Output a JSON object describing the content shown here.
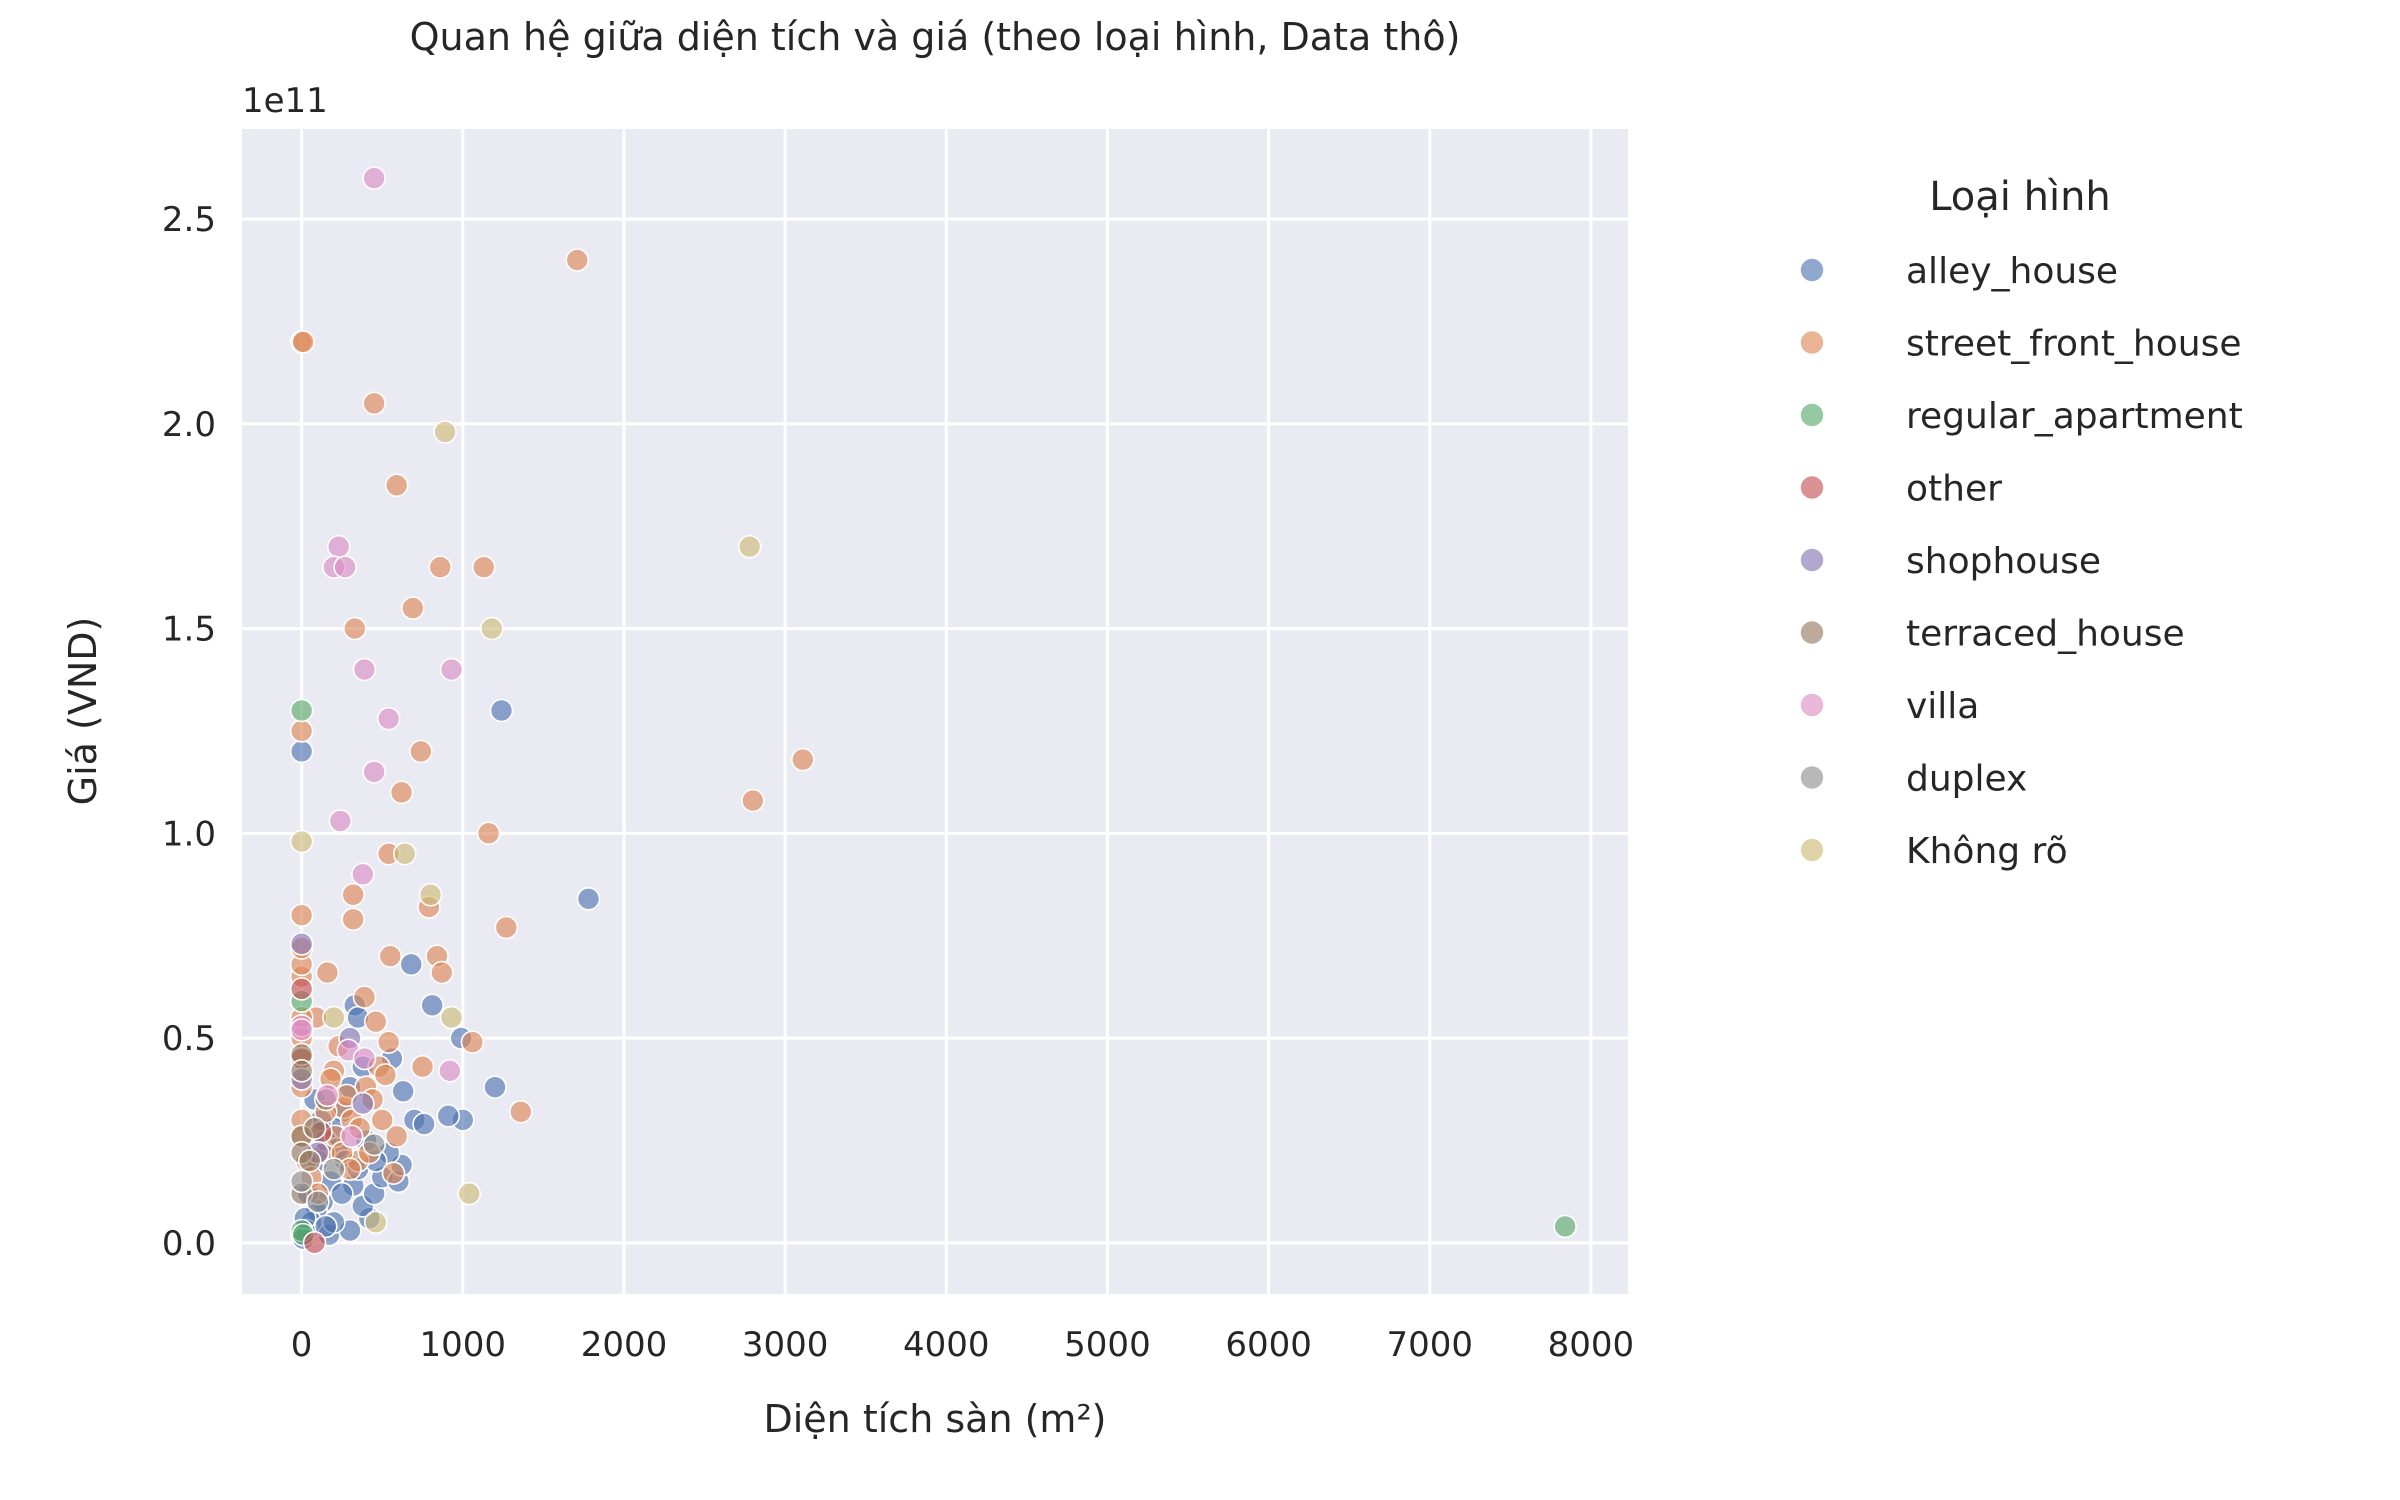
{
  "chart_data": {
    "type": "scatter",
    "title": "Quan hệ giữa diện tích và giá (theo loại hình, Data thô)",
    "xlabel": "Diện tích sàn (m²)",
    "ylabel": "Giá (VND)",
    "y_offset_label": "1e11",
    "y_unit_multiplier": 100000000000,
    "xlim": [
      -370,
      8230
    ],
    "ylim": [
      -0.125,
      2.72
    ],
    "x_ticks": [
      0,
      1000,
      2000,
      3000,
      4000,
      5000,
      6000,
      7000,
      8000
    ],
    "x_tick_labels": [
      "0",
      "1000",
      "2000",
      "3000",
      "4000",
      "5000",
      "6000",
      "7000",
      "8000"
    ],
    "y_ticks": [
      0.0,
      0.5,
      1.0,
      1.5,
      2.0,
      2.5
    ],
    "y_tick_labels": [
      "0.0",
      "0.5",
      "1.0",
      "1.5",
      "2.0",
      "2.5"
    ],
    "grid": true,
    "background": "#eaeaf2",
    "legend": {
      "title": "Loại hình",
      "placement": "outside-right"
    },
    "series": [
      {
        "name": "alley_house",
        "color": "#4c72b0",
        "points": [
          [
            0,
            1.2
          ],
          [
            1240,
            1.3
          ],
          [
            1780,
            0.84
          ],
          [
            680,
            0.68
          ],
          [
            810,
            0.58
          ],
          [
            990,
            0.5
          ],
          [
            1200,
            0.38
          ],
          [
            1000,
            0.3
          ],
          [
            910,
            0.31
          ],
          [
            630,
            0.37
          ],
          [
            560,
            0.45
          ],
          [
            330,
            0.58
          ],
          [
            350,
            0.55
          ],
          [
            380,
            0.43
          ],
          [
            300,
            0.38
          ],
          [
            250,
            0.32
          ],
          [
            200,
            0.28
          ],
          [
            150,
            0.25
          ],
          [
            100,
            0.2
          ],
          [
            180,
            0.15
          ],
          [
            130,
            0.1
          ],
          [
            90,
            0.08
          ],
          [
            60,
            0.05
          ],
          [
            30,
            0.03
          ],
          [
            0,
            0.02
          ],
          [
            10,
            0.01
          ],
          [
            170,
            0.02
          ],
          [
            300,
            0.03
          ],
          [
            420,
            0.06
          ],
          [
            380,
            0.09
          ],
          [
            450,
            0.12
          ],
          [
            500,
            0.16
          ],
          [
            600,
            0.15
          ],
          [
            620,
            0.19
          ],
          [
            540,
            0.22
          ],
          [
            220,
            0.23
          ],
          [
            400,
            0.25
          ],
          [
            270,
            0.2
          ],
          [
            320,
            0.14
          ],
          [
            200,
            0.05
          ],
          [
            150,
            0.04
          ],
          [
            250,
            0.12
          ],
          [
            350,
            0.18
          ],
          [
            460,
            0.2
          ],
          [
            700,
            0.3
          ],
          [
            760,
            0.29
          ],
          [
            120,
            0.3
          ],
          [
            80,
            0.35
          ],
          [
            40,
            0.12
          ],
          [
            20,
            0.06
          ]
        ]
      },
      {
        "name": "street_front_house",
        "color": "#dd8452",
        "points": [
          [
            0,
            2.2
          ],
          [
            10,
            2.2
          ],
          [
            1710,
            2.4
          ],
          [
            450,
            2.05
          ],
          [
            590,
            1.85
          ],
          [
            330,
            1.5
          ],
          [
            690,
            1.55
          ],
          [
            860,
            1.65
          ],
          [
            1130,
            1.65
          ],
          [
            0,
            1.25
          ],
          [
            740,
            1.2
          ],
          [
            3110,
            1.18
          ],
          [
            2800,
            1.08
          ],
          [
            620,
            1.1
          ],
          [
            1160,
            1.0
          ],
          [
            540,
            0.95
          ],
          [
            320,
            0.85
          ],
          [
            790,
            0.82
          ],
          [
            0,
            0.8
          ],
          [
            320,
            0.79
          ],
          [
            1270,
            0.77
          ],
          [
            550,
            0.7
          ],
          [
            840,
            0.7
          ],
          [
            870,
            0.66
          ],
          [
            0,
            0.65
          ],
          [
            160,
            0.66
          ],
          [
            0,
            0.68
          ],
          [
            390,
            0.6
          ],
          [
            460,
            0.54
          ],
          [
            90,
            0.55
          ],
          [
            540,
            0.49
          ],
          [
            1060,
            0.49
          ],
          [
            750,
            0.43
          ],
          [
            480,
            0.43
          ],
          [
            400,
            0.38
          ],
          [
            1360,
            0.32
          ],
          [
            590,
            0.26
          ],
          [
            200,
            0.42
          ],
          [
            260,
            0.33
          ],
          [
            310,
            0.3
          ],
          [
            140,
            0.22
          ],
          [
            210,
            0.26
          ],
          [
            350,
            0.2
          ],
          [
            570,
            0.17
          ],
          [
            0,
            0.55
          ],
          [
            0,
            0.45
          ],
          [
            0,
            0.5
          ],
          [
            0,
            0.38
          ],
          [
            0,
            0.3
          ],
          [
            30,
            0.2
          ],
          [
            60,
            0.16
          ],
          [
            100,
            0.12
          ],
          [
            440,
            0.35
          ],
          [
            500,
            0.3
          ],
          [
            180,
            0.4
          ],
          [
            230,
            0.48
          ],
          [
            280,
            0.36
          ],
          [
            360,
            0.28
          ],
          [
            420,
            0.22
          ],
          [
            520,
            0.41
          ],
          [
            0,
            0.72
          ],
          [
            0,
            0.26
          ],
          [
            250,
            0.22
          ],
          [
            300,
            0.18
          ],
          [
            150,
            0.32
          ]
        ]
      },
      {
        "name": "regular_apartment",
        "color": "#55a868",
        "points": [
          [
            0,
            1.3
          ],
          [
            0,
            0.59
          ],
          [
            7840,
            0.04
          ],
          [
            0,
            0.03
          ],
          [
            10,
            0.02
          ]
        ]
      },
      {
        "name": "other",
        "color": "#c44e52",
        "points": [
          [
            80,
            0.0
          ],
          [
            0,
            0.45
          ],
          [
            120,
            0.27
          ],
          [
            0,
            0.62
          ]
        ]
      },
      {
        "name": "shophouse",
        "color": "#8172b3",
        "points": [
          [
            0,
            0.73
          ],
          [
            0,
            0.4
          ],
          [
            300,
            0.5
          ],
          [
            380,
            0.34
          ],
          [
            100,
            0.22
          ]
        ]
      },
      {
        "name": "terraced_house",
        "color": "#937860",
        "points": [
          [
            0,
            0.46
          ],
          [
            0,
            0.42
          ],
          [
            0,
            0.26
          ],
          [
            0,
            0.22
          ],
          [
            0,
            0.12
          ],
          [
            50,
            0.2
          ],
          [
            80,
            0.28
          ],
          [
            150,
            0.35
          ]
        ]
      },
      {
        "name": "villa",
        "color": "#da8bc3",
        "points": [
          [
            450,
            2.6
          ],
          [
            230,
            1.7
          ],
          [
            200,
            1.65
          ],
          [
            270,
            1.65
          ],
          [
            390,
            1.4
          ],
          [
            930,
            1.4
          ],
          [
            540,
            1.28
          ],
          [
            450,
            1.15
          ],
          [
            240,
            1.03
          ],
          [
            380,
            0.9
          ],
          [
            290,
            0.47
          ],
          [
            0,
            0.53
          ],
          [
            0,
            0.52
          ],
          [
            920,
            0.42
          ],
          [
            160,
            0.36
          ],
          [
            390,
            0.45
          ],
          [
            310,
            0.26
          ]
        ]
      },
      {
        "name": "duplex",
        "color": "#8c8c8c",
        "points": [
          [
            0,
            0.15
          ],
          [
            100,
            0.1
          ],
          [
            200,
            0.18
          ],
          [
            450,
            0.24
          ]
        ]
      },
      {
        "name": "Không rõ",
        "color": "#ccb974",
        "points": [
          [
            0,
            0.98
          ],
          [
            890,
            1.98
          ],
          [
            2780,
            1.7
          ],
          [
            1180,
            1.5
          ],
          [
            640,
            0.95
          ],
          [
            800,
            0.85
          ],
          [
            930,
            0.55
          ],
          [
            200,
            0.55
          ],
          [
            1040,
            0.12
          ],
          [
            460,
            0.05
          ]
        ]
      }
    ]
  }
}
